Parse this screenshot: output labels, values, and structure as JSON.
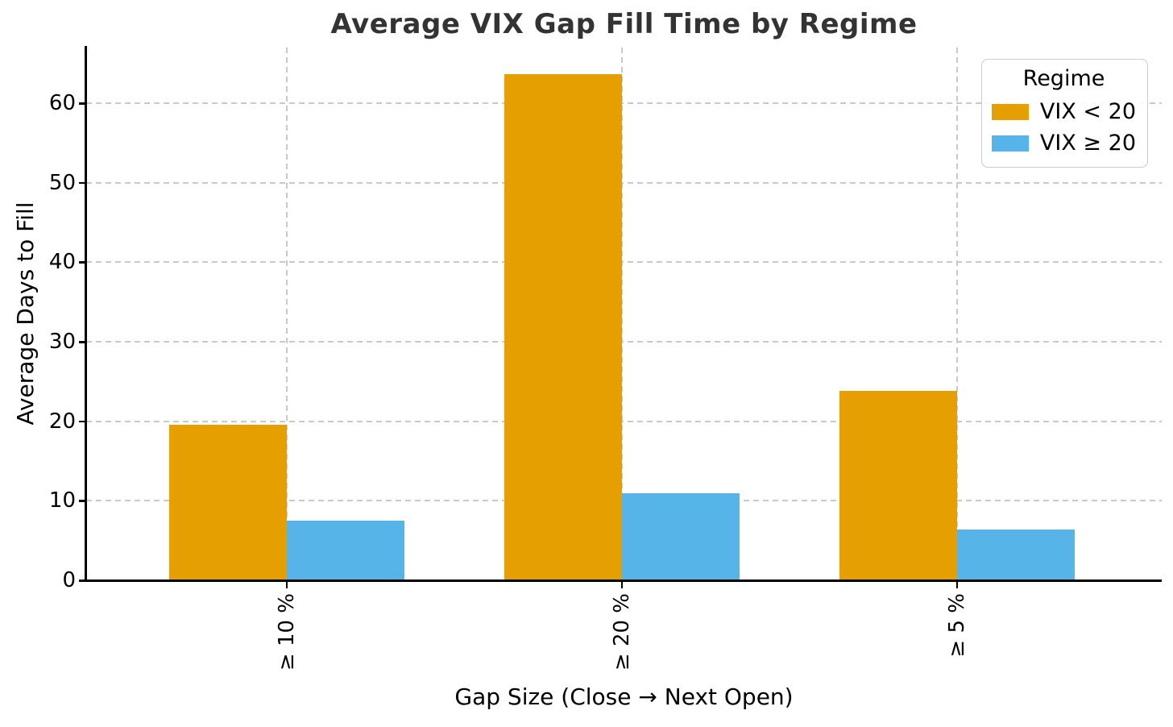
{
  "chart_data": {
    "type": "bar",
    "title": "Average VIX Gap Fill Time by Regime",
    "xlabel": "Gap Size (Close → Next Open)",
    "ylabel": "Average Days to Fill",
    "categories": [
      "≥ 10 %",
      "≥ 20 %",
      "≥ 5 %"
    ],
    "series": [
      {
        "name": "VIX < 20",
        "color": "#E69F00",
        "values": [
          19.6,
          63.7,
          23.8
        ]
      },
      {
        "name": "VIX ≥ 20",
        "color": "#56B4E9",
        "values": [
          7.5,
          10.9,
          6.4
        ]
      }
    ],
    "ylim": [
      0,
      67
    ],
    "yticks": [
      0,
      10,
      20,
      30,
      40,
      50,
      60
    ],
    "grid": true,
    "xtick_rotation": 90,
    "legend": {
      "title": "Regime",
      "position": "upper right"
    },
    "colors": {
      "background": "#FFFFFF",
      "grid": "#C9C9C9",
      "axis": "#000000",
      "title_text": "#333333",
      "tick_text": "#000000"
    }
  }
}
